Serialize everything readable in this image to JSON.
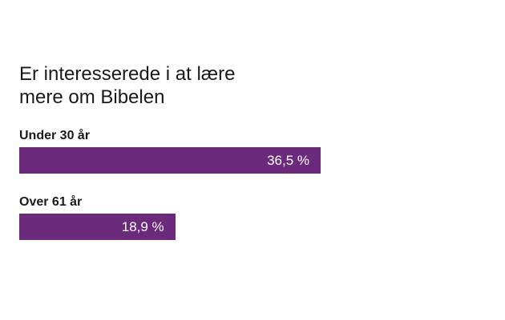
{
  "chart_data": {
    "type": "bar",
    "orientation": "horizontal",
    "title_lines": [
      "Er interesserede i at lære",
      "mere om Bibelen"
    ],
    "categories": [
      "Under 30 år",
      "Over 61 år"
    ],
    "values": [
      36.5,
      18.9
    ],
    "value_labels": [
      "36,5 %",
      "18,9 %"
    ],
    "xlim": [
      0,
      100
    ],
    "grid": false,
    "bar_color": "#6b2a7c",
    "value_label_color": "#ffffff"
  }
}
